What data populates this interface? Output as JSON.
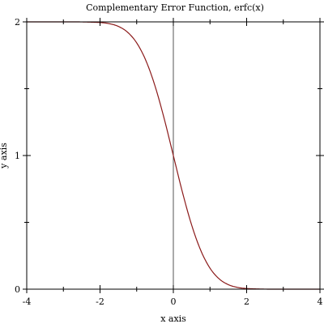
{
  "chart_data": {
    "type": "line",
    "title": "Complementary Error Function, erfc(x)",
    "xlabel": "x axis",
    "ylabel": "y axis",
    "xlim": [
      -4,
      4
    ],
    "ylim": [
      0,
      2
    ],
    "x_ticks": [
      {
        "value": -4,
        "label": "-4"
      },
      {
        "value": -2,
        "label": "-2"
      },
      {
        "value": 0,
        "label": "0"
      },
      {
        "value": 2,
        "label": "2"
      },
      {
        "value": 4,
        "label": "4"
      }
    ],
    "x_minor_ticks": [
      -3,
      -1,
      1,
      3
    ],
    "y_ticks": [
      {
        "value": 0,
        "label": "0"
      },
      {
        "value": 1,
        "label": "1"
      },
      {
        "value": 2,
        "label": "2"
      }
    ],
    "y_minor_ticks": [
      0.5,
      1.5
    ],
    "zero_lines": {
      "x": 0,
      "y": 0
    },
    "grid": false,
    "legend": "none",
    "series": [
      {
        "color": "#8b1a1a",
        "x": [
          -4,
          -3,
          -2.5,
          -2,
          -1.75,
          -1.5,
          -1.25,
          -1,
          -0.75,
          -0.5,
          -0.25,
          0,
          0.25,
          0.5,
          0.75,
          1,
          1.25,
          1.5,
          1.75,
          2,
          2.5,
          3,
          4
        ],
        "y": [
          2.0,
          2.0,
          1.9996,
          1.9953,
          1.9867,
          1.9661,
          1.9229,
          1.8427,
          1.7112,
          1.5205,
          1.2763,
          1.0,
          0.7237,
          0.4795,
          0.2888,
          0.1573,
          0.0771,
          0.0339,
          0.0133,
          0.0047,
          0.0004,
          0.0,
          0.0
        ]
      }
    ]
  }
}
